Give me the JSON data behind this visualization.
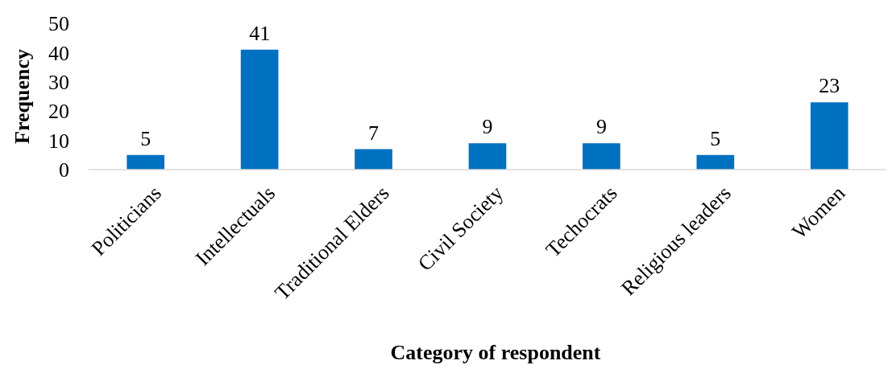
{
  "chart_data": {
    "type": "bar",
    "xlabel": "Category of respondent",
    "ylabel": "Frequency",
    "categories": [
      "Politicians",
      "Intellectuals",
      "Traditional Elders",
      "Civil Society",
      "Techocrats",
      "Religious leaders",
      "Women"
    ],
    "values": [
      5,
      41,
      7,
      9,
      9,
      5,
      23
    ],
    "color": "#0070c0",
    "ylim": [
      0,
      50
    ],
    "yticks": [
      0,
      10,
      20,
      30,
      40,
      50
    ],
    "data_labels": true,
    "grid": false
  }
}
